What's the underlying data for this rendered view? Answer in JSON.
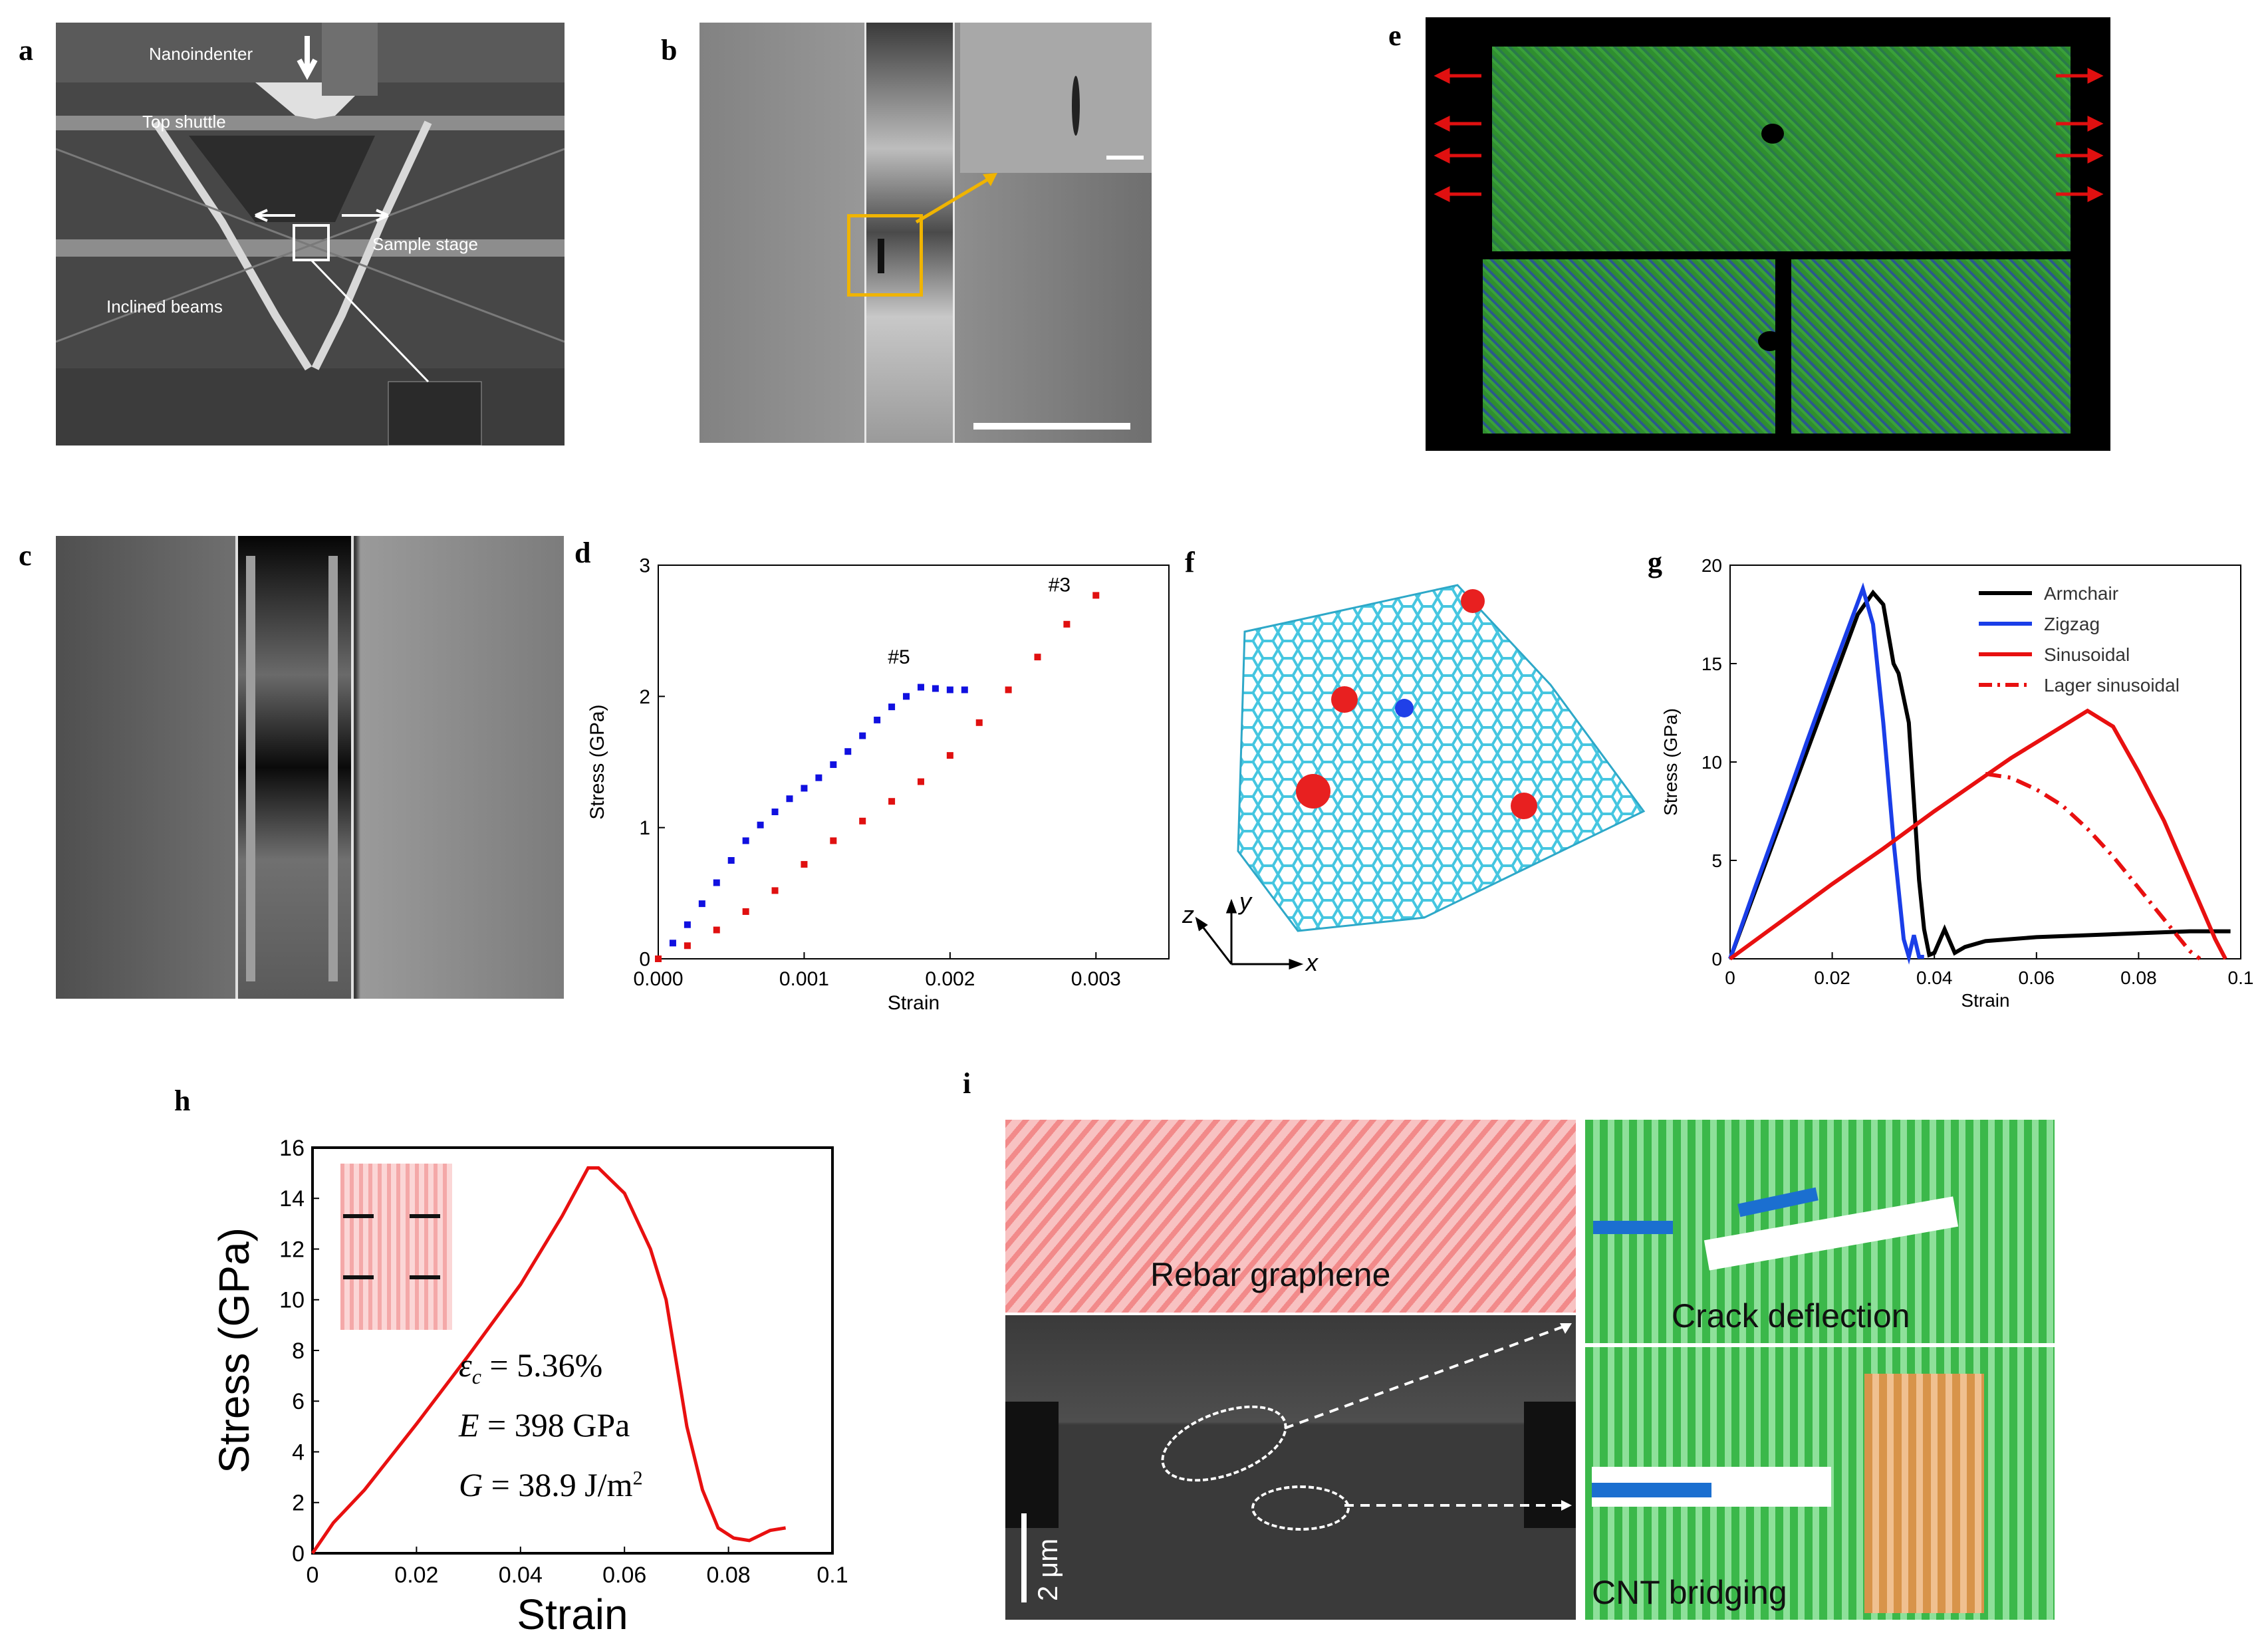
{
  "panels": {
    "a": {
      "letter": "a",
      "labels": {
        "nanoindenter": "Nanoindenter",
        "top_shuttle": "Top shuttle",
        "sample_stage": "Sample stage",
        "inclined_beams": "Inclined beams"
      }
    },
    "b": {
      "letter": "b"
    },
    "c": {
      "letter": "c"
    },
    "d": {
      "letter": "d"
    },
    "e": {
      "letter": "e"
    },
    "f": {
      "letter": "f",
      "axes": {
        "x": "x",
        "y": "y",
        "z": "z"
      }
    },
    "g": {
      "letter": "g"
    },
    "h": {
      "letter": "h",
      "annotations": {
        "eps_sym": "ε",
        "eps_sub": "c",
        "eps_val": " = 5.36%",
        "E_sym": "E",
        "E_val": " = 398 GPa",
        "G_sym": "G",
        "G_val": " = 38.9 J/m",
        "G_sup": "2"
      }
    },
    "i": {
      "letter": "i",
      "labels": {
        "rebar": "Rebar graphene",
        "crack": "Crack deflection",
        "cnt": "CNT bridging",
        "scale": "2 μm"
      }
    }
  },
  "chart_data": [
    {
      "id": "d",
      "type": "scatter",
      "xlabel": "Strain",
      "ylabel": "Stress (GPa)",
      "xlim": [
        0,
        0.0035
      ],
      "ylim": [
        0,
        3
      ],
      "xticks": [
        "0.000",
        "0.001",
        "0.002",
        "0.003"
      ],
      "yticks": [
        "0",
        "1",
        "2",
        "3"
      ],
      "series": [
        {
          "name": "#5",
          "color": "#1010e0",
          "x": [
            0,
            0.0001,
            0.0002,
            0.0003,
            0.0004,
            0.0005,
            0.0006,
            0.0007,
            0.0008,
            0.0009,
            0.001,
            0.0011,
            0.0012,
            0.0013,
            0.0014,
            0.0015,
            0.0016,
            0.0017,
            0.0018,
            0.0019,
            0.002,
            0.0021
          ],
          "y": [
            0,
            0.12,
            0.26,
            0.42,
            0.58,
            0.75,
            0.9,
            1.02,
            1.12,
            1.22,
            1.3,
            1.38,
            1.48,
            1.58,
            1.7,
            1.82,
            1.92,
            2.0,
            2.07,
            2.06,
            2.05,
            2.05
          ]
        },
        {
          "name": "#3",
          "color": "#e01010",
          "x": [
            0,
            0.0002,
            0.0004,
            0.0006,
            0.0008,
            0.001,
            0.0012,
            0.0014,
            0.0016,
            0.0018,
            0.002,
            0.0022,
            0.0024,
            0.0026,
            0.0028,
            0.003
          ],
          "y": [
            0,
            0.1,
            0.22,
            0.36,
            0.52,
            0.72,
            0.9,
            1.05,
            1.2,
            1.35,
            1.55,
            1.8,
            2.05,
            2.3,
            2.55,
            2.77
          ]
        }
      ],
      "annotations": [
        "#5",
        "#3"
      ]
    },
    {
      "id": "g",
      "type": "line",
      "xlabel": "Strain",
      "ylabel": "Stress (GPa)",
      "xlim": [
        0,
        0.1
      ],
      "ylim": [
        0,
        20
      ],
      "xticks": [
        "0",
        "0.02",
        "0.04",
        "0.06",
        "0.08",
        "0.1"
      ],
      "yticks": [
        "0",
        "5",
        "10",
        "15",
        "20"
      ],
      "series": [
        {
          "name": "Armchair",
          "color": "#000000",
          "dash": false,
          "x": [
            0,
            0.005,
            0.01,
            0.015,
            0.02,
            0.025,
            0.028,
            0.03,
            0.032,
            0.033,
            0.035,
            0.036,
            0.037,
            0.038,
            0.039,
            0.04,
            0.042,
            0.044,
            0.046,
            0.05,
            0.06,
            0.07,
            0.08,
            0.09,
            0.098
          ],
          "y": [
            0,
            3.5,
            7,
            10.5,
            14,
            17.5,
            18.6,
            18,
            15,
            14.5,
            12,
            8,
            4,
            1.5,
            0.2,
            0.3,
            1.5,
            0.3,
            0.6,
            0.9,
            1.1,
            1.2,
            1.3,
            1.4,
            1.4
          ]
        },
        {
          "name": "Zigzag",
          "color": "#1a3ee8",
          "dash": false,
          "x": [
            0,
            0.005,
            0.01,
            0.015,
            0.02,
            0.026,
            0.028,
            0.03,
            0.032,
            0.034,
            0.035,
            0.036,
            0.037,
            0.038
          ],
          "y": [
            0,
            3.7,
            7.3,
            11,
            14.6,
            18.8,
            17,
            12,
            6,
            1,
            0.1,
            1.2,
            0.1,
            0.1
          ]
        },
        {
          "name": "Sinusoidal",
          "color": "#e81010",
          "dash": false,
          "x": [
            0,
            0.01,
            0.02,
            0.03,
            0.04,
            0.05,
            0.055,
            0.06,
            0.065,
            0.07,
            0.075,
            0.08,
            0.085,
            0.09,
            0.095,
            0.097
          ],
          "y": [
            0,
            1.9,
            3.8,
            5.6,
            7.5,
            9.3,
            10.2,
            11,
            11.8,
            12.6,
            11.8,
            9.5,
            7,
            4,
            1,
            0
          ]
        },
        {
          "name": "Lager sinusoidal",
          "color": "#e81010",
          "dash": true,
          "x": [
            0.05,
            0.055,
            0.06,
            0.065,
            0.07,
            0.075,
            0.08,
            0.085,
            0.09,
            0.092
          ],
          "y": [
            9.4,
            9.2,
            8.6,
            7.8,
            6.6,
            5.2,
            3.6,
            2,
            0.4,
            0
          ]
        }
      ]
    },
    {
      "id": "h",
      "type": "line",
      "xlabel": "Strain",
      "ylabel": "Stress (GPa)",
      "xlim": [
        0,
        0.1
      ],
      "ylim": [
        0,
        16
      ],
      "xticks": [
        "0",
        "0.02",
        "0.04",
        "0.06",
        "0.08",
        "0.1"
      ],
      "yticks": [
        "0",
        "2",
        "4",
        "6",
        "8",
        "10",
        "12",
        "14",
        "16"
      ],
      "series": [
        {
          "name": "stress",
          "color": "#e81010",
          "dash": false,
          "x": [
            0,
            0.004,
            0.01,
            0.02,
            0.03,
            0.04,
            0.048,
            0.053,
            0.055,
            0.06,
            0.065,
            0.068,
            0.07,
            0.072,
            0.075,
            0.078,
            0.081,
            0.084,
            0.088,
            0.091
          ],
          "y": [
            0,
            1.2,
            2.5,
            5.1,
            7.8,
            10.6,
            13.3,
            15.2,
            15.2,
            14.2,
            12,
            10,
            7.5,
            5,
            2.5,
            1.0,
            0.6,
            0.5,
            0.9,
            1.0
          ]
        }
      ]
    }
  ]
}
